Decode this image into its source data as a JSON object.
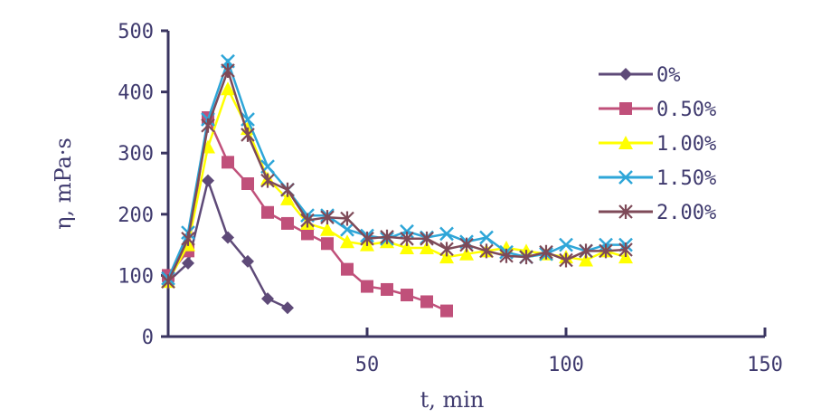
{
  "chart_data": {
    "type": "line",
    "xlabel": "t, min",
    "ylabel": "η, mPa·s",
    "xlim": [
      0,
      150
    ],
    "ylim": [
      0,
      500
    ],
    "x_ticks": [
      "50",
      "100",
      "150"
    ],
    "y_ticks": [
      "0",
      "100",
      "200",
      "300",
      "400",
      "500"
    ],
    "legend_position": "right",
    "grid": false,
    "series": [
      {
        "name": "0%",
        "color": "#5e4a78",
        "marker": "diamond",
        "x": [
          0,
          5,
          10,
          15,
          20,
          25,
          30
        ],
        "y": [
          90,
          120,
          255,
          162,
          123,
          62,
          47
        ]
      },
      {
        "name": "0.50%",
        "color": "#c0507a",
        "marker": "square",
        "x": [
          0,
          5,
          10,
          15,
          20,
          25,
          30,
          35,
          40,
          45,
          50,
          55,
          60,
          65,
          70
        ],
        "y": [
          100,
          140,
          358,
          285,
          250,
          203,
          185,
          168,
          152,
          110,
          82,
          77,
          68,
          57,
          42
        ]
      },
      {
        "name": "1.00%",
        "color": "#ffff00",
        "marker": "triangle",
        "x": [
          0,
          5,
          10,
          15,
          20,
          25,
          30,
          35,
          40,
          45,
          50,
          55,
          60,
          65,
          70,
          75,
          80,
          85,
          90,
          95,
          100,
          105,
          110,
          115
        ],
        "y": [
          90,
          150,
          310,
          405,
          340,
          258,
          225,
          185,
          175,
          155,
          150,
          155,
          145,
          145,
          130,
          135,
          140,
          145,
          140,
          135,
          130,
          125,
          140,
          130
        ]
      },
      {
        "name": "1.50%",
        "color": "#2ea6d8",
        "marker": "x",
        "x": [
          0,
          5,
          10,
          15,
          20,
          25,
          30,
          35,
          40,
          45,
          50,
          55,
          60,
          65,
          70,
          75,
          80,
          85,
          90,
          95,
          100,
          105,
          110,
          115
        ],
        "y": [
          95,
          170,
          355,
          450,
          355,
          278,
          240,
          198,
          198,
          175,
          165,
          160,
          172,
          162,
          168,
          155,
          162,
          138,
          130,
          135,
          150,
          140,
          150,
          150
        ]
      },
      {
        "name": "2.00%",
        "color": "#7e4a58",
        "marker": "asterisk",
        "x": [
          0,
          5,
          10,
          15,
          20,
          25,
          30,
          35,
          40,
          45,
          50,
          55,
          60,
          65,
          70,
          75,
          80,
          85,
          90,
          95,
          100,
          105,
          110,
          115
        ],
        "y": [
          90,
          160,
          345,
          435,
          330,
          255,
          240,
          190,
          195,
          193,
          160,
          163,
          160,
          160,
          143,
          150,
          140,
          132,
          130,
          138,
          125,
          140,
          140,
          142
        ]
      }
    ]
  }
}
